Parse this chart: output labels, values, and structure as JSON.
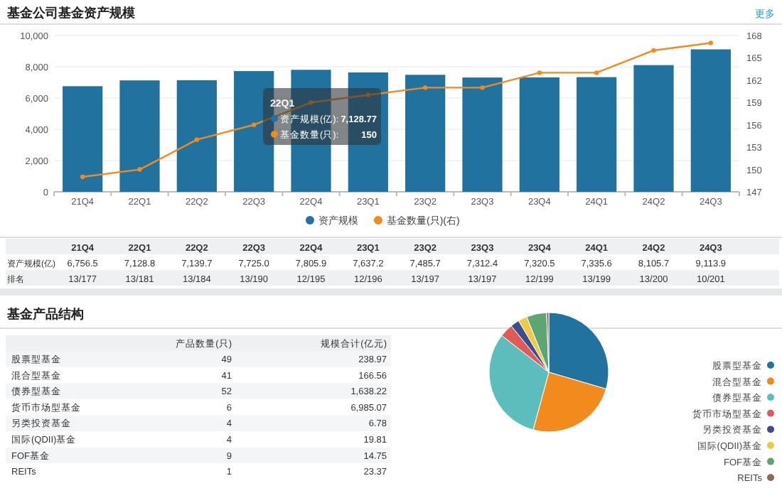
{
  "chart_data": [
    {
      "type": "bar",
      "title": "基金公司基金资产规模",
      "categories": [
        "21Q4",
        "22Q1",
        "22Q2",
        "22Q3",
        "22Q4",
        "23Q1",
        "23Q2",
        "23Q3",
        "23Q4",
        "24Q1",
        "24Q2",
        "24Q3"
      ],
      "series": [
        {
          "name": "资产规模",
          "type": "bar",
          "color": "#21729f",
          "values": [
            6756.5,
            7128.77,
            7139.7,
            7725.0,
            7805.9,
            7637.2,
            7485.7,
            7312.4,
            7320.5,
            7335.6,
            8105.7,
            9113.9
          ],
          "value_labels": [
            "6,756.5",
            "7,128.8",
            "7,139.7",
            "7,725.0",
            "7,805.9",
            "7,637.2",
            "7,485.7",
            "7,312.4",
            "7,320.5",
            "7,335.6",
            "8,105.7",
            "9,113.9"
          ]
        },
        {
          "name": "基金数量(只)(右)",
          "type": "line",
          "axis": "y2",
          "color": "#f28a1e",
          "values": [
            149,
            150,
            154,
            156,
            159,
            160,
            161,
            161,
            163,
            163,
            166,
            167
          ]
        }
      ],
      "ylim": [
        0,
        10000
      ],
      "yticks": [
        0,
        {
          "value": 2000,
          "label": "2,000"
        },
        {
          "value": 4000,
          "label": "4,000"
        },
        {
          "value": 6000,
          "label": "6,000"
        },
        {
          "value": 8000,
          "label": "8,000"
        },
        {
          "value": 10000,
          "label": "10,000"
        }
      ],
      "y2lim": [
        147,
        168
      ],
      "y2ticks": [
        147,
        150,
        153,
        156,
        159,
        162,
        165,
        168
      ],
      "grid": "y",
      "legend": "bottom",
      "marker": "circle",
      "line_style": "solid",
      "annotations": [
        "更多",
        "22Q1",
        "资产规模(亿):",
        "7,128.77",
        "基金数量(只):",
        "150",
        "资产规模(亿)",
        "排名",
        "13/177",
        "13/181",
        "13/184",
        "13/190",
        "12/195",
        "12/196",
        "13/197",
        "13/197",
        "12/199",
        "13/199",
        "13/200",
        "10/201"
      ]
    },
    {
      "type": "pie",
      "title": "基金产品结构",
      "categories": [
        "股票型基金",
        "混合型基金",
        "债券型基金",
        "货币市场型基金",
        "另类投资基金",
        "国际(QDII)基金",
        "FOF基金",
        "REITs"
      ],
      "values": [
        49,
        41,
        52,
        6,
        4,
        4,
        9,
        1
      ],
      "colors": [
        "#21729f",
        "#f28a1e",
        "#5dbdbd",
        "#e05a5a",
        "#3c4f8c",
        "#f0c94b",
        "#5fa574",
        "#8b6a5a"
      ],
      "data_labels": true,
      "legend": "right",
      "annotations": [
        "产品数量(只)",
        "规模合计(亿元)",
        "238.97",
        "166.56",
        "1,638.22",
        "6,985.07",
        "6.78",
        "19.81",
        "14.75",
        "23.37"
      ]
    }
  ]
}
